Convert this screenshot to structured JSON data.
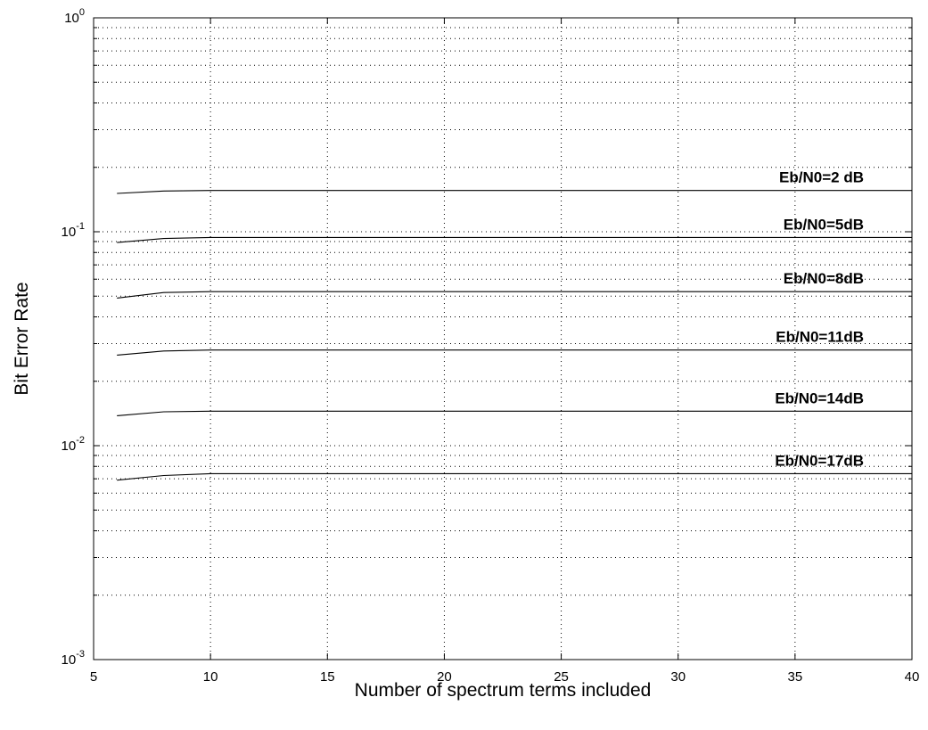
{
  "chart_data": {
    "type": "line",
    "xlabel": "Number of spectrum terms included",
    "ylabel": "Bit Error Rate",
    "xlim": [
      5,
      40
    ],
    "ylim": [
      0.001,
      1
    ],
    "yscale": "log",
    "grid": true,
    "x_ticks": [
      5,
      10,
      15,
      20,
      25,
      30,
      35,
      40
    ],
    "y_ticks": [
      {
        "base": "10",
        "exp": "-3",
        "value": 0.001
      },
      {
        "base": "10",
        "exp": "-2",
        "value": 0.01
      },
      {
        "base": "10",
        "exp": "-1",
        "value": 0.1
      },
      {
        "base": "10",
        "exp": "0",
        "value": 1
      }
    ],
    "line_color": "#000000",
    "series": [
      {
        "label": "Eb/N0=2 dB",
        "x": [
          6,
          8,
          10,
          15,
          20,
          25,
          30,
          35,
          40
        ],
        "values": [
          0.151,
          0.155,
          0.156,
          0.156,
          0.156,
          0.156,
          0.156,
          0.156,
          0.156
        ]
      },
      {
        "label": "Eb/N0=5dB",
        "x": [
          6,
          8,
          10,
          15,
          20,
          25,
          30,
          35,
          40
        ],
        "values": [
          0.089,
          0.093,
          0.094,
          0.094,
          0.094,
          0.094,
          0.094,
          0.094,
          0.094
        ]
      },
      {
        "label": "Eb/N0=8dB",
        "x": [
          6,
          8,
          10,
          15,
          20,
          25,
          30,
          35,
          40
        ],
        "values": [
          0.049,
          0.052,
          0.0525,
          0.0525,
          0.0525,
          0.0525,
          0.0525,
          0.0525,
          0.0525
        ]
      },
      {
        "label": "Eb/N0=11dB",
        "x": [
          6,
          8,
          10,
          15,
          20,
          25,
          30,
          35,
          40
        ],
        "values": [
          0.0265,
          0.0277,
          0.028,
          0.028,
          0.028,
          0.028,
          0.028,
          0.028,
          0.028
        ]
      },
      {
        "label": "Eb/N0=14dB",
        "x": [
          6,
          8,
          10,
          15,
          20,
          25,
          30,
          35,
          40
        ],
        "values": [
          0.0138,
          0.0144,
          0.0145,
          0.0145,
          0.0145,
          0.0145,
          0.0145,
          0.0145,
          0.0145
        ]
      },
      {
        "label": "Eb/N0=17dB",
        "x": [
          6,
          8,
          10,
          15,
          20,
          25,
          30,
          35,
          40
        ],
        "values": [
          0.0069,
          0.00725,
          0.0074,
          0.0074,
          0.0074,
          0.0074,
          0.0074,
          0.0074,
          0.0074
        ]
      }
    ]
  }
}
